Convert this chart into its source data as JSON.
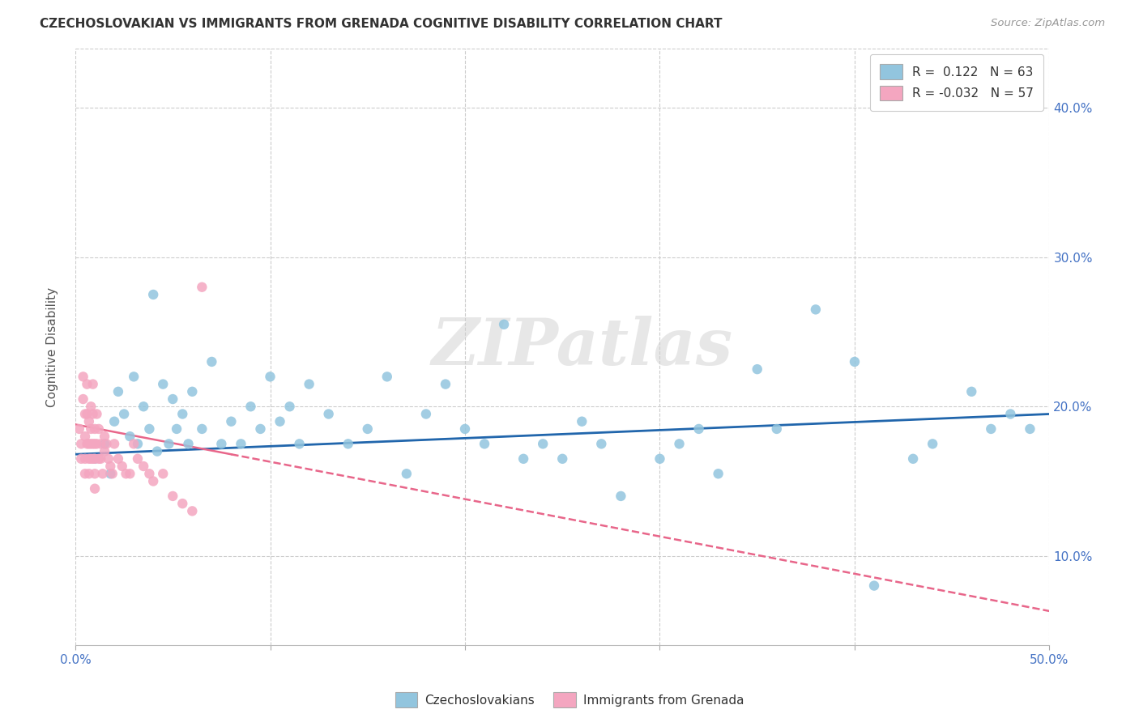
{
  "title": "CZECHOSLOVAKIAN VS IMMIGRANTS FROM GRENADA COGNITIVE DISABILITY CORRELATION CHART",
  "source_text": "Source: ZipAtlas.com",
  "ylabel": "Cognitive Disability",
  "xlim": [
    0.0,
    0.5
  ],
  "ylim": [
    0.04,
    0.44
  ],
  "yticks": [
    0.1,
    0.2,
    0.3,
    0.4
  ],
  "ytick_labels": [
    "10.0%",
    "20.0%",
    "30.0%",
    "40.0%"
  ],
  "xticks": [
    0.0,
    0.1,
    0.2,
    0.3,
    0.4,
    0.5
  ],
  "xtick_labels": [
    "0.0%",
    "",
    "",
    "",
    "",
    "50.0%"
  ],
  "blue_R": 0.122,
  "blue_N": 63,
  "pink_R": -0.032,
  "pink_N": 57,
  "blue_color": "#92c5de",
  "pink_color": "#f4a6c0",
  "blue_line_color": "#2166ac",
  "pink_line_color": "#e8668a",
  "watermark": "ZIPatlas",
  "blue_scatter_x": [
    0.01,
    0.015,
    0.018,
    0.02,
    0.022,
    0.025,
    0.028,
    0.03,
    0.032,
    0.035,
    0.038,
    0.04,
    0.042,
    0.045,
    0.048,
    0.05,
    0.052,
    0.055,
    0.058,
    0.06,
    0.065,
    0.07,
    0.075,
    0.08,
    0.085,
    0.09,
    0.095,
    0.1,
    0.105,
    0.11,
    0.115,
    0.12,
    0.13,
    0.14,
    0.15,
    0.16,
    0.17,
    0.18,
    0.19,
    0.2,
    0.21,
    0.22,
    0.23,
    0.24,
    0.25,
    0.26,
    0.27,
    0.28,
    0.3,
    0.31,
    0.32,
    0.33,
    0.35,
    0.36,
    0.38,
    0.4,
    0.41,
    0.43,
    0.44,
    0.46,
    0.47,
    0.48,
    0.49
  ],
  "blue_scatter_y": [
    0.165,
    0.175,
    0.155,
    0.19,
    0.21,
    0.195,
    0.18,
    0.22,
    0.175,
    0.2,
    0.185,
    0.275,
    0.17,
    0.215,
    0.175,
    0.205,
    0.185,
    0.195,
    0.175,
    0.21,
    0.185,
    0.23,
    0.175,
    0.19,
    0.175,
    0.2,
    0.185,
    0.22,
    0.19,
    0.2,
    0.175,
    0.215,
    0.195,
    0.175,
    0.185,
    0.22,
    0.155,
    0.195,
    0.215,
    0.185,
    0.175,
    0.255,
    0.165,
    0.175,
    0.165,
    0.19,
    0.175,
    0.14,
    0.165,
    0.175,
    0.185,
    0.155,
    0.225,
    0.185,
    0.265,
    0.23,
    0.08,
    0.165,
    0.175,
    0.21,
    0.185,
    0.195,
    0.185
  ],
  "pink_scatter_x": [
    0.002,
    0.003,
    0.003,
    0.004,
    0.004,
    0.005,
    0.005,
    0.005,
    0.005,
    0.006,
    0.006,
    0.006,
    0.007,
    0.007,
    0.007,
    0.007,
    0.008,
    0.008,
    0.008,
    0.008,
    0.009,
    0.009,
    0.009,
    0.009,
    0.01,
    0.01,
    0.01,
    0.01,
    0.01,
    0.011,
    0.011,
    0.012,
    0.012,
    0.013,
    0.013,
    0.014,
    0.015,
    0.015,
    0.016,
    0.017,
    0.018,
    0.019,
    0.02,
    0.022,
    0.024,
    0.026,
    0.028,
    0.03,
    0.032,
    0.035,
    0.038,
    0.04,
    0.045,
    0.05,
    0.055,
    0.06,
    0.065
  ],
  "pink_scatter_y": [
    0.185,
    0.175,
    0.165,
    0.22,
    0.205,
    0.195,
    0.18,
    0.165,
    0.155,
    0.215,
    0.195,
    0.175,
    0.19,
    0.175,
    0.165,
    0.155,
    0.2,
    0.185,
    0.175,
    0.165,
    0.215,
    0.195,
    0.175,
    0.165,
    0.185,
    0.175,
    0.165,
    0.155,
    0.145,
    0.195,
    0.175,
    0.185,
    0.165,
    0.175,
    0.165,
    0.155,
    0.18,
    0.17,
    0.175,
    0.165,
    0.16,
    0.155,
    0.175,
    0.165,
    0.16,
    0.155,
    0.155,
    0.175,
    0.165,
    0.16,
    0.155,
    0.15,
    0.155,
    0.14,
    0.135,
    0.13,
    0.28
  ],
  "blue_line_x0": 0.0,
  "blue_line_x1": 0.5,
  "blue_line_y0": 0.168,
  "blue_line_y1": 0.195,
  "pink_line_x0": 0.0,
  "pink_line_x1": 0.08,
  "pink_line_y0": 0.188,
  "pink_line_y1": 0.168
}
